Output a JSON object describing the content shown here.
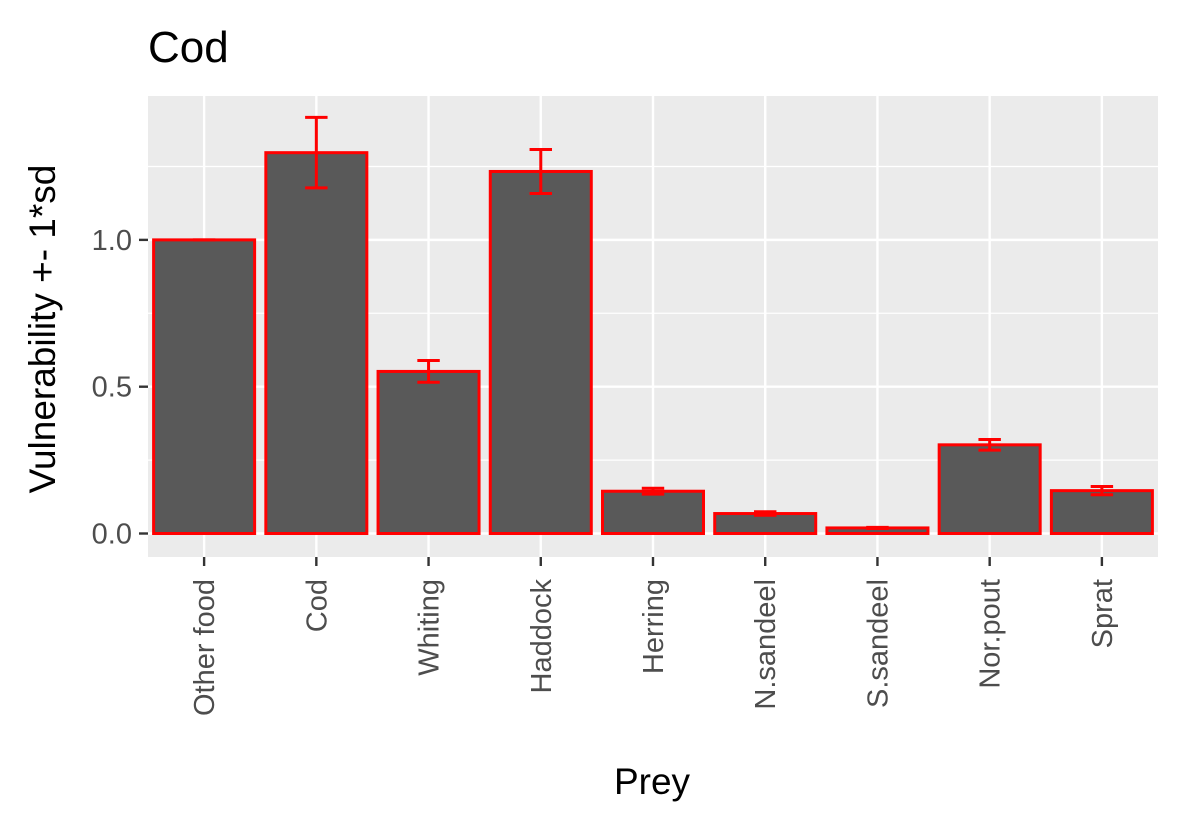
{
  "chart_data": {
    "type": "bar",
    "title": "Cod",
    "xlabel": "Prey",
    "ylabel": "Vulnerability +- 1*sd",
    "categories": [
      "Other food",
      "Cod",
      "Whiting",
      "Haddock",
      "Herring",
      "N.sandeel",
      "S.sandeel",
      "Nor.pout",
      "Sprat"
    ],
    "values": [
      1.0,
      1.297,
      0.552,
      1.233,
      0.144,
      0.068,
      0.019,
      0.302,
      0.146
    ],
    "sd": [
      0.0,
      0.12,
      0.037,
      0.075,
      0.01,
      0.006,
      0.002,
      0.018,
      0.014
    ],
    "ylim": [
      -0.08,
      1.49
    ],
    "yticks": [
      0.0,
      0.5,
      1.0
    ],
    "yticks_labels": [
      "0.0",
      "0.5",
      "1.0"
    ],
    "grid": true,
    "colors": {
      "bar_fill": "#595959",
      "bar_outline": "#ff0000",
      "error_bar": "#ff0000",
      "panel_background": "#ebebeb",
      "grid_line": "#ffffff",
      "tick_color": "#333333"
    }
  }
}
